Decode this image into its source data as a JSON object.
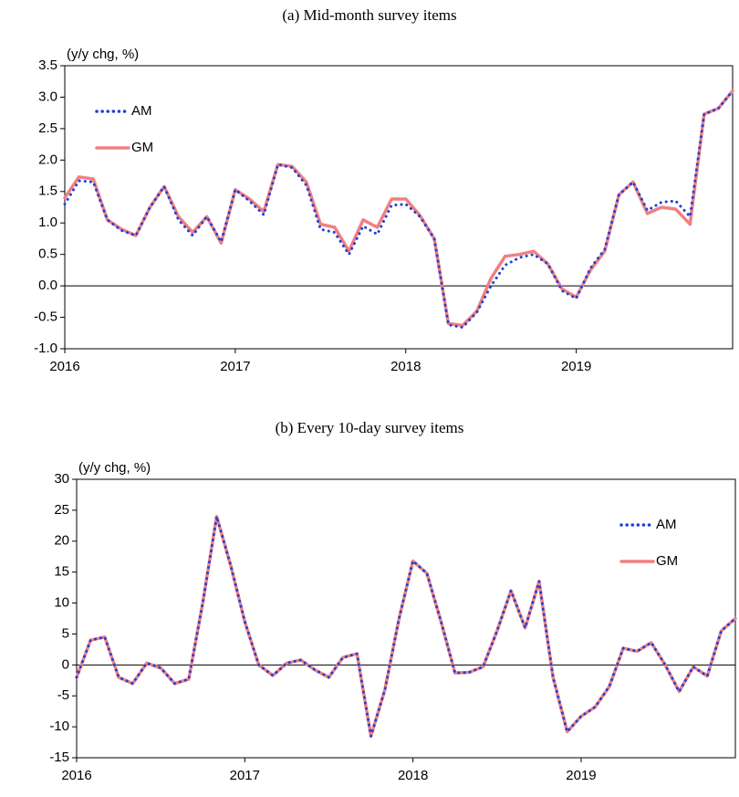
{
  "chart_data": [
    {
      "type": "line",
      "title": "(a) Mid-month survey items",
      "ylabel": "(y/y chg, %)",
      "x": [
        2016,
        2016.083,
        2016.167,
        2016.25,
        2016.333,
        2016.417,
        2016.5,
        2016.583,
        2016.667,
        2016.75,
        2016.833,
        2016.917,
        2017,
        2017.083,
        2017.167,
        2017.25,
        2017.333,
        2017.417,
        2017.5,
        2017.583,
        2017.667,
        2017.75,
        2017.833,
        2017.917,
        2018,
        2018.083,
        2018.167,
        2018.25,
        2018.333,
        2018.417,
        2018.5,
        2018.583,
        2018.667,
        2018.75,
        2018.833,
        2018.917,
        2019,
        2019.083,
        2019.167,
        2019.25,
        2019.333,
        2019.417,
        2019.5,
        2019.583,
        2019.667,
        2019.75,
        2019.833,
        2019.917
      ],
      "series": [
        {
          "name": "GM",
          "color": "#f08080",
          "style": "solid",
          "values": [
            1.4,
            1.73,
            1.7,
            1.05,
            0.9,
            0.8,
            1.25,
            1.58,
            1.1,
            0.85,
            1.1,
            0.68,
            1.53,
            1.38,
            1.18,
            1.93,
            1.9,
            1.65,
            0.98,
            0.93,
            0.55,
            1.05,
            0.93,
            1.38,
            1.38,
            1.12,
            0.75,
            -0.6,
            -0.63,
            -0.4,
            0.12,
            0.47,
            0.5,
            0.55,
            0.35,
            -0.05,
            -0.18,
            0.25,
            0.55,
            1.45,
            1.65,
            1.15,
            1.25,
            1.22,
            0.98,
            2.73,
            2.82,
            3.1
          ]
        },
        {
          "name": "AM",
          "color": "#1f3fdc",
          "style": "dotted",
          "values": [
            1.3,
            1.67,
            1.65,
            1.05,
            0.88,
            0.8,
            1.25,
            1.58,
            1.05,
            0.8,
            1.1,
            0.7,
            1.53,
            1.35,
            1.13,
            1.93,
            1.88,
            1.6,
            0.9,
            0.85,
            0.5,
            0.95,
            0.82,
            1.28,
            1.3,
            1.1,
            0.75,
            -0.62,
            -0.66,
            -0.42,
            0.0,
            0.33,
            0.45,
            0.5,
            0.35,
            -0.08,
            -0.2,
            0.28,
            0.58,
            1.45,
            1.65,
            1.2,
            1.33,
            1.35,
            1.1,
            2.73,
            2.82,
            3.1
          ]
        }
      ],
      "xlim": [
        2016,
        2019.917
      ],
      "xticks": [
        2016,
        2017,
        2018,
        2019
      ],
      "ylim": [
        -1,
        3.5
      ],
      "yticks": [
        {
          "value": -1,
          "label": "-1.0"
        },
        -0.5,
        {
          "value": 0,
          "label": "0.0"
        },
        0.5,
        {
          "value": 1,
          "label": "1.0"
        },
        1.5,
        {
          "value": 2,
          "label": "2.0"
        },
        2.5,
        {
          "value": 3,
          "label": "3.0"
        },
        3.5
      ],
      "legend": "upper left"
    },
    {
      "type": "line",
      "title": "(b) Every 10-day survey items",
      "ylabel": "(y/y chg, %)",
      "x": [
        2016,
        2016.083,
        2016.167,
        2016.25,
        2016.333,
        2016.417,
        2016.5,
        2016.583,
        2016.667,
        2016.75,
        2016.833,
        2016.917,
        2017,
        2017.083,
        2017.167,
        2017.25,
        2017.333,
        2017.417,
        2017.5,
        2017.583,
        2017.667,
        2017.75,
        2017.833,
        2017.917,
        2018,
        2018.083,
        2018.167,
        2018.25,
        2018.333,
        2018.417,
        2018.5,
        2018.583,
        2018.667,
        2018.75,
        2018.833,
        2018.917,
        2019,
        2019.083,
        2019.167,
        2019.25,
        2019.333,
        2019.417,
        2019.5,
        2019.583,
        2019.667,
        2019.75,
        2019.833,
        2019.917
      ],
      "series": [
        {
          "name": "GM",
          "color": "#f08080",
          "style": "solid",
          "values": [
            -2,
            4,
            4.5,
            -2,
            -3,
            0.3,
            -0.5,
            -3,
            -2.3,
            10,
            24,
            16,
            7,
            0,
            -1.7,
            0.3,
            0.8,
            -0.8,
            -2,
            1.2,
            1.8,
            -11.5,
            -4,
            7.5,
            16.8,
            14.8,
            7,
            -1.3,
            -1.2,
            -0.3,
            5.5,
            12,
            6,
            13.5,
            -2,
            -10.8,
            -8.3,
            -6.8,
            -3.5,
            2.7,
            2.2,
            3.6,
            0,
            -4.3,
            -0.3,
            -1.8,
            5.5,
            7.5
          ]
        },
        {
          "name": "AM",
          "color": "#1f3fdc",
          "style": "dotted",
          "values": [
            -2,
            4,
            4.5,
            -2,
            -3,
            0.3,
            -0.5,
            -3,
            -2.3,
            10,
            24,
            16,
            7,
            0,
            -1.7,
            0.3,
            0.8,
            -0.8,
            -2,
            1.2,
            1.8,
            -11.5,
            -4,
            7.5,
            16.8,
            14.8,
            7,
            -1.3,
            -1.2,
            -0.3,
            5.5,
            12,
            6,
            13.5,
            -2,
            -10.8,
            -8.3,
            -6.8,
            -3.5,
            2.7,
            2.2,
            3.6,
            0,
            -4.3,
            -0.3,
            -1.8,
            5.5,
            7.5
          ]
        }
      ],
      "xlim": [
        2016,
        2019.917
      ],
      "xticks": [
        2016,
        2017,
        2018,
        2019
      ],
      "ylim": [
        -15,
        30
      ],
      "yticks": [
        -15,
        -10,
        -5,
        0,
        5,
        10,
        15,
        20,
        25,
        30
      ],
      "legend": "upper right"
    }
  ]
}
